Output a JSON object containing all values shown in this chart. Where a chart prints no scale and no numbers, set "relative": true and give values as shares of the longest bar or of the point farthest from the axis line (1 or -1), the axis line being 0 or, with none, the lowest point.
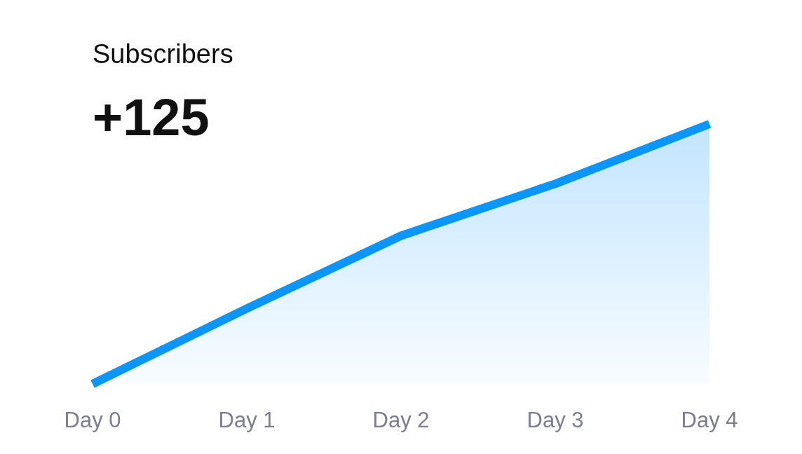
{
  "chart_data": {
    "type": "area",
    "title": "Subscribers",
    "subtitle": "+125",
    "categories": [
      "Day 0",
      "Day 1",
      "Day 2",
      "Day 3",
      "Day 4"
    ],
    "values": [
      0,
      0.29,
      0.57,
      0.77,
      1
    ],
    "color": "#0a95ff",
    "relative": true
  }
}
